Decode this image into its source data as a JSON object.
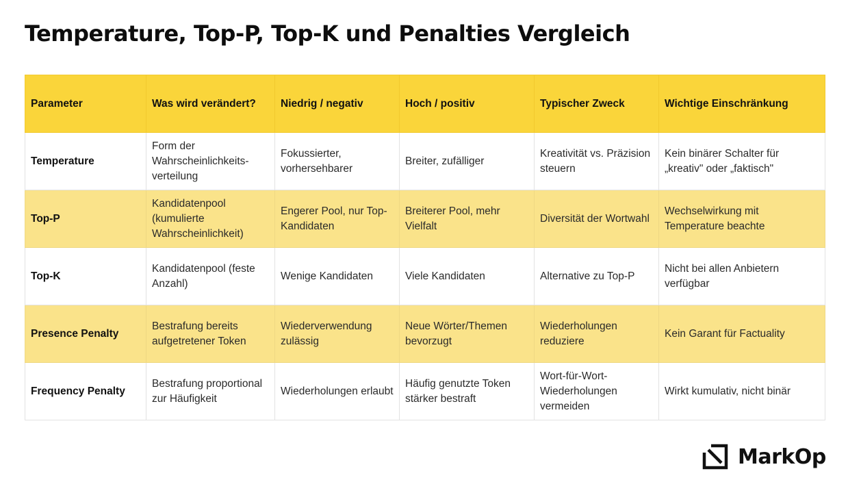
{
  "title": "Temperature, Top-P, Top-K und Penalties Vergleich",
  "table": {
    "headers": [
      "Parameter",
      "Was wird verändert?",
      "Niedrig / negativ",
      "Hoch / positiv",
      "Typischer Zweck",
      "Wichtige Einschränkung"
    ],
    "rows": [
      [
        "Temperature",
        "Form der Wahrscheinlichkeits-verteilung",
        "Fokussierter, vorhersehbarer",
        "Breiter, zufälliger",
        "Kreativität vs. Präzision steuern",
        "Kein binärer Schalter für „kreativ\" oder „faktisch\""
      ],
      [
        "Top-P",
        "Kandidatenpool (kumulierte Wahrscheinlichkeit)",
        "Engerer Pool, nur Top-Kandidaten",
        "Breiterer Pool, mehr Vielfalt",
        "Diversität der Wortwahl",
        "Wechselwirkung mit Temperature beachte"
      ],
      [
        "Top-K",
        "Kandidatenpool (feste Anzahl)",
        "Wenige Kandidaten",
        "Viele Kandidaten",
        "Alternative zu Top-P",
        "Nicht bei allen Anbietern verfügbar"
      ],
      [
        "Presence Penalty",
        "Bestrafung bereits aufgetretener Token",
        "Wiederverwendung zulässig",
        "Neue Wörter/Themen bevorzugt",
        "Wiederholungen reduziere",
        "Kein Garant für Factuality"
      ],
      [
        "Frequency Penalty",
        "Bestrafung proportional zur Häufigkeit",
        "Wiederholungen erlaubt",
        "Häufig genutzte Token stärker bestraft",
        "Wort-für-Wort-Wiederholungen vermeiden",
        "Wirkt kumulativ, nicht binär"
      ]
    ]
  },
  "logo": {
    "text": "MarkOp",
    "icon": "markop-logo-icon"
  },
  "colors": {
    "header_bg": "#fad53a",
    "alt_row_bg": "#fae38a",
    "border": "#e2e2e2"
  }
}
